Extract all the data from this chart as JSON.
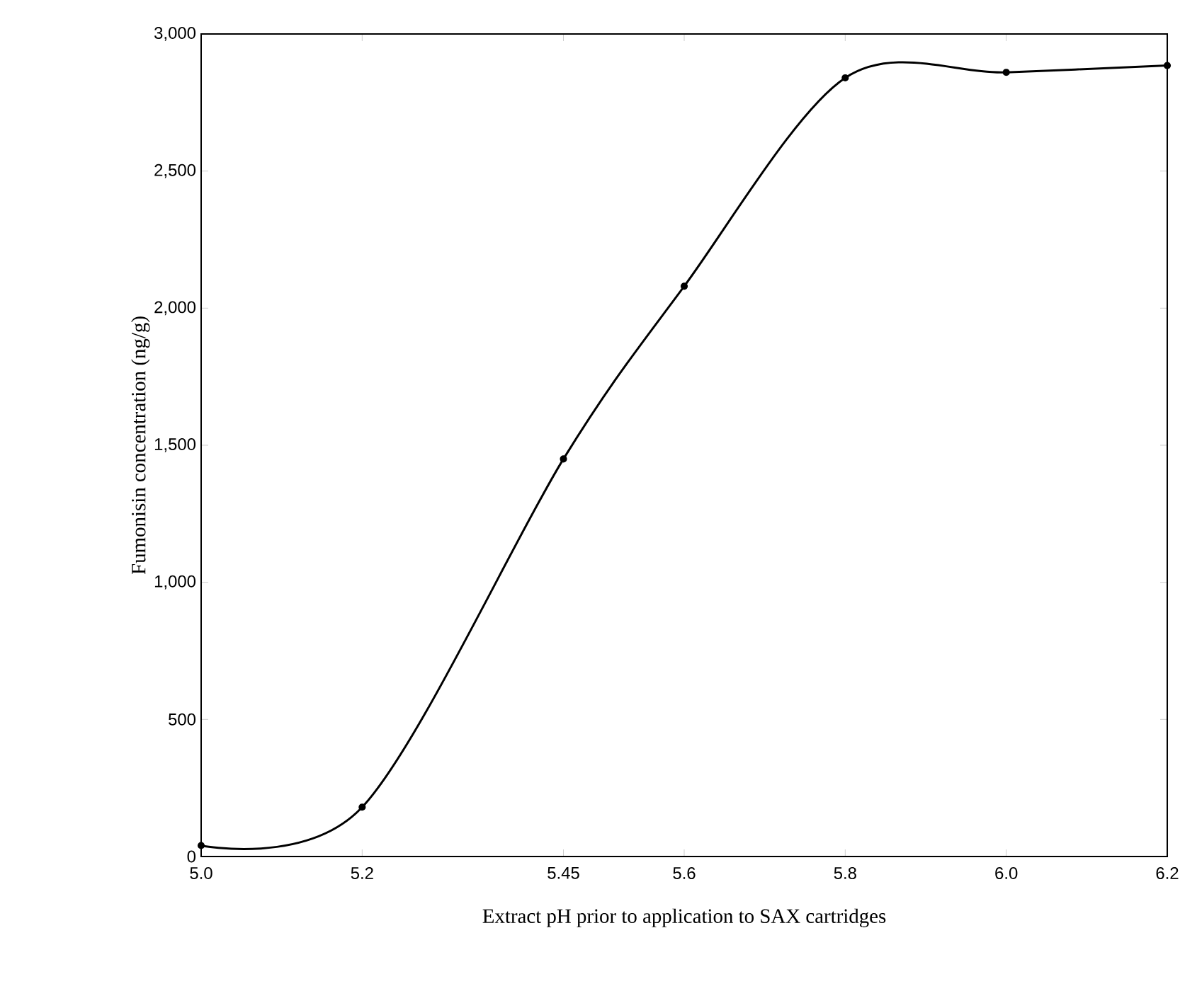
{
  "chart_data": {
    "type": "line",
    "xlabel": "Extract pH prior to application to SAX cartridges",
    "ylabel": "Fumonisin concentration (ng/g)",
    "x": [
      5.0,
      5.2,
      5.45,
      5.6,
      5.8,
      6.0,
      6.2
    ],
    "series": [
      {
        "color": "#000000",
        "values": [
          40,
          180,
          1450,
          2080,
          2840,
          2860,
          2885
        ]
      }
    ],
    "xlim": [
      5.0,
      6.2
    ],
    "xticks": [
      {
        "value": 5.0,
        "label": "5.0"
      },
      5.2,
      5.45,
      5.6,
      5.8,
      {
        "value": 6.0,
        "label": "6.0"
      },
      6.2
    ],
    "ylim": [
      0,
      3000
    ],
    "yticks": [
      0,
      500,
      {
        "value": 1000,
        "label": "1,000"
      },
      {
        "value": 1500,
        "label": "1,500"
      },
      {
        "value": 2000,
        "label": "2,000"
      },
      {
        "value": 2500,
        "label": "2,500"
      },
      {
        "value": 3000,
        "label": "3,000"
      }
    ],
    "marker": "circle",
    "line_style": "solid",
    "grid": false
  }
}
